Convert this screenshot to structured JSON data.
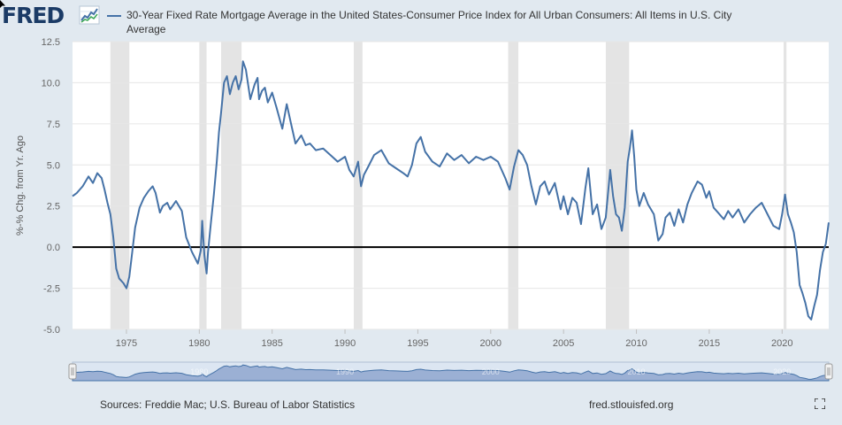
{
  "brand": {
    "logo_text": "FRED",
    "logo_icon": "trend-chart-icon"
  },
  "legend": {
    "series_label": "30-Year Fixed Rate Mortgage Average in the United States-Consumer Price Index for All Urban Consumers: All Items in U.S. City Average"
  },
  "footer": {
    "sources": "Sources: Freddie Mac; U.S. Bureau of Labor Statistics",
    "url": "fred.stlouisfed.org"
  },
  "colors": {
    "line": "#4572a7",
    "recession": "#e4e4e4",
    "background": "#e1e9f0",
    "plot_bg": "#ffffff",
    "grid": "#e6e6e6",
    "zero_line": "#000000",
    "navigator_fill": "#8fa6cf",
    "navigator_line": "#4572a7"
  },
  "chart_data": {
    "type": "line",
    "title": "",
    "ylabel": "%-% Chg. from Yr. Ago",
    "xlabel": "",
    "xlim": [
      1971.3,
      2023.2
    ],
    "ylim": [
      -5.0,
      12.5
    ],
    "x_ticks": [
      "1975",
      "1980",
      "1985",
      "1990",
      "1995",
      "2000",
      "2005",
      "2010",
      "2015",
      "2020"
    ],
    "y_ticks": [
      "12.5",
      "10.0",
      "7.5",
      "5.0",
      "2.5",
      "0.0",
      "-2.5",
      "-5.0"
    ],
    "grid": "horizontal",
    "zero_line": true,
    "legend_position": "top",
    "recessions": [
      [
        1973.9,
        1975.2
      ],
      [
        1980.0,
        1980.5
      ],
      [
        1981.5,
        1982.9
      ],
      [
        1990.6,
        1991.2
      ],
      [
        2001.2,
        2001.9
      ],
      [
        2007.9,
        2009.5
      ],
      [
        2020.1,
        2020.3
      ]
    ],
    "series": [
      {
        "name": "30-Year Fixed Rate Mortgage Average in the United States-Consumer Price Index for All Urban Consumers: All Items in U.S. City Average",
        "x": [
          1971.3,
          1971.6,
          1972.0,
          1972.4,
          1972.7,
          1973.0,
          1973.3,
          1973.5,
          1973.7,
          1973.9,
          1974.1,
          1974.3,
          1974.5,
          1974.8,
          1975.0,
          1975.2,
          1975.4,
          1975.6,
          1975.9,
          1976.2,
          1976.5,
          1976.8,
          1977.0,
          1977.3,
          1977.5,
          1977.8,
          1978.0,
          1978.4,
          1978.8,
          1979.1,
          1979.5,
          1979.9,
          1980.1,
          1980.2,
          1980.35,
          1980.5,
          1980.6,
          1980.8,
          1981.0,
          1981.2,
          1981.35,
          1981.5,
          1981.7,
          1981.9,
          1982.1,
          1982.3,
          1982.5,
          1982.7,
          1982.9,
          1983.0,
          1983.2,
          1983.5,
          1983.8,
          1984.0,
          1984.1,
          1984.3,
          1984.5,
          1984.7,
          1985.0,
          1985.3,
          1985.7,
          1986.0,
          1986.3,
          1986.6,
          1987.0,
          1987.3,
          1987.6,
          1988.0,
          1988.5,
          1989.0,
          1989.5,
          1990.0,
          1990.3,
          1990.6,
          1990.9,
          1991.1,
          1991.3,
          1991.6,
          1992.0,
          1992.5,
          1993.0,
          1993.5,
          1994.0,
          1994.3,
          1994.6,
          1994.9,
          1995.2,
          1995.5,
          1996.0,
          1996.5,
          1997.0,
          1997.5,
          1998.0,
          1998.5,
          1999.0,
          1999.5,
          2000.0,
          2000.5,
          2001.0,
          2001.3,
          2001.6,
          2001.9,
          2002.2,
          2002.5,
          2002.8,
          2003.1,
          2003.4,
          2003.7,
          2004.0,
          2004.4,
          2004.8,
          2005.0,
          2005.3,
          2005.6,
          2005.9,
          2006.2,
          2006.5,
          2006.7,
          2007.0,
          2007.3,
          2007.6,
          2007.9,
          2008.2,
          2008.4,
          2008.6,
          2008.8,
          2009.0,
          2009.2,
          2009.4,
          2009.55,
          2009.7,
          2009.85,
          2010.0,
          2010.2,
          2010.5,
          2010.8,
          2011.2,
          2011.5,
          2011.8,
          2012.0,
          2012.3,
          2012.6,
          2012.9,
          2013.2,
          2013.5,
          2013.8,
          2014.2,
          2014.5,
          2014.8,
          2015.0,
          2015.3,
          2015.6,
          2016.0,
          2016.3,
          2016.6,
          2017.0,
          2017.4,
          2017.8,
          2018.2,
          2018.6,
          2019.0,
          2019.4,
          2019.8,
          2020.0,
          2020.2,
          2020.4,
          2020.6,
          2020.8,
          2021.0,
          2021.2,
          2021.4,
          2021.6,
          2021.8,
          2022.0,
          2022.2,
          2022.4,
          2022.6,
          2022.8,
          2023.0,
          2023.2
        ],
        "values": [
          3.1,
          3.3,
          3.7,
          4.3,
          3.9,
          4.5,
          4.2,
          3.5,
          2.7,
          2.0,
          0.6,
          -1.3,
          -1.9,
          -2.2,
          -2.5,
          -1.8,
          -0.3,
          1.2,
          2.4,
          3.0,
          3.4,
          3.7,
          3.3,
          2.1,
          2.5,
          2.7,
          2.3,
          2.8,
          2.2,
          0.6,
          -0.3,
          -1.0,
          -0.2,
          1.6,
          -0.5,
          -1.6,
          -0.3,
          1.5,
          3.2,
          5.2,
          7.0,
          8.2,
          10.0,
          10.4,
          9.3,
          10.0,
          10.4,
          9.6,
          10.2,
          11.3,
          10.8,
          9.0,
          9.9,
          10.3,
          9.0,
          9.5,
          9.7,
          8.8,
          9.4,
          8.5,
          7.2,
          8.7,
          7.5,
          6.3,
          6.8,
          6.2,
          6.3,
          5.9,
          6.0,
          5.6,
          5.2,
          5.5,
          4.7,
          4.3,
          5.2,
          3.7,
          4.4,
          4.9,
          5.6,
          5.9,
          5.1,
          4.8,
          4.5,
          4.3,
          5.0,
          6.3,
          6.7,
          5.8,
          5.2,
          4.9,
          5.7,
          5.3,
          5.6,
          5.1,
          5.5,
          5.3,
          5.5,
          5.2,
          4.2,
          3.5,
          4.9,
          5.9,
          5.6,
          5.0,
          3.7,
          2.6,
          3.7,
          4.0,
          3.2,
          3.9,
          2.3,
          3.1,
          2.0,
          3.0,
          2.7,
          1.4,
          3.6,
          4.8,
          2.0,
          2.6,
          1.1,
          1.8,
          4.7,
          3.1,
          2.0,
          1.8,
          1.0,
          2.4,
          5.2,
          6.0,
          7.1,
          5.5,
          3.5,
          2.5,
          3.3,
          2.6,
          2.0,
          0.4,
          0.8,
          1.8,
          2.1,
          1.3,
          2.3,
          1.5,
          2.6,
          3.3,
          4.0,
          3.8,
          3.0,
          3.4,
          2.4,
          2.1,
          1.7,
          2.2,
          1.8,
          2.3,
          1.5,
          2.0,
          2.4,
          2.7,
          2.0,
          1.3,
          1.1,
          2.0,
          3.2,
          2.0,
          1.5,
          0.9,
          -0.3,
          -2.3,
          -2.8,
          -3.4,
          -4.2,
          -4.4,
          -3.6,
          -2.9,
          -1.4,
          -0.3,
          0.2,
          1.5
        ]
      }
    ],
    "navigator": {
      "range": [
        1971.3,
        2023.2
      ],
      "tick_labels": [
        "1980",
        "1990",
        "2000",
        "2010",
        "2020"
      ]
    }
  }
}
